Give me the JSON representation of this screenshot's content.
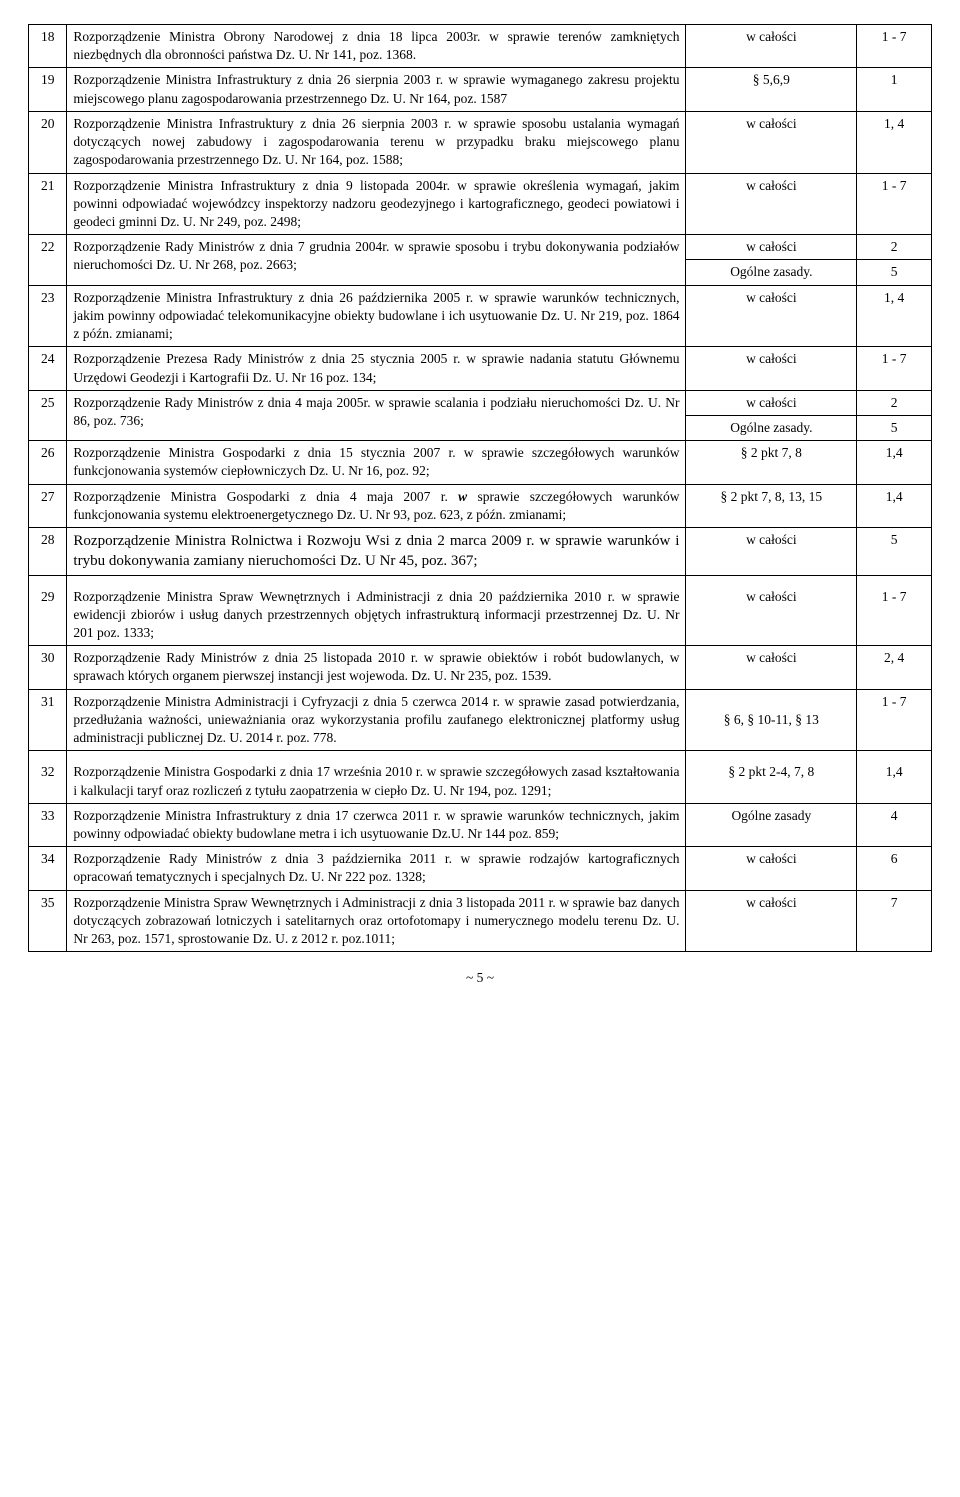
{
  "rows": [
    {
      "n": "18",
      "desc": "Rozporządzenie Ministra Obrony Narodowej z dnia 18 lipca 2003r. w sprawie terenów zamkniętych niezbędnych dla obronności państwa Dz. U. Nr 141, poz. 1368.",
      "ref": "w całości",
      "idx": "1 - 7"
    },
    {
      "n": "19",
      "desc": "Rozporządzenie Ministra Infrastruktury z dnia 26 sierpnia 2003 r. w sprawie wymaganego zakresu projektu miejscowego planu zagospodarowania przestrzennego Dz. U. Nr 164, poz. 1587",
      "ref": "§ 5,6,9",
      "idx": "1"
    },
    {
      "n": "20",
      "desc": "Rozporządzenie Ministra Infrastruktury z dnia 26 sierpnia 2003 r. w sprawie sposobu ustalania wymagań  dotyczących nowej zabudowy i zagospodarowania terenu  w przypadku braku miejscowego planu zagospodarowania przestrzennego Dz. U. Nr 164, poz. 1588;",
      "ref": "w całości",
      "idx": "1, 4"
    },
    {
      "n": "21",
      "desc": "Rozporządzenie Ministra Infrastruktury z dnia 9 listopada 2004r. w sprawie określenia wymagań, jakim powinni odpowiadać wojewódzcy inspektorzy nadzoru geodezyjnego i kartograficznego, geodeci  powiatowi i geodeci gminni Dz. U. Nr 249, poz. 2498;",
      "ref": "w całości",
      "idx": "1 - 7"
    },
    {
      "n": "22",
      "rowspan": 2,
      "desc": "Rozporządzenie Rady Ministrów z dnia 7 grudnia 2004r. w sprawie sposobu i trybu dokonywania podziałów nieruchomości Dz. U. Nr 268, poz. 2663;",
      "ref": "w całości",
      "idx": "2"
    },
    {
      "sub": true,
      "ref": "Ogólne zasady.",
      "idx": "5"
    },
    {
      "n": "23",
      "desc": "Rozporządzenie Ministra Infrastruktury z dnia 26 października 2005 r. w sprawie warunków technicznych, jakim powinny odpowiadać telekomunikacyjne obiekty budowlane i ich usytuowanie Dz. U. Nr 219, poz. 1864 z późn. zmianami;",
      "ref": "w całości",
      "idx": "1, 4"
    },
    {
      "n": "24",
      "desc": "Rozporządzenie Prezesa Rady Ministrów z dnia 25 stycznia 2005 r. w sprawie nadania statutu Głównemu Urzędowi Geodezji i Kartografii  Dz. U. Nr 16 poz. 134;",
      "ref": "w całości",
      "idx": "1 - 7"
    },
    {
      "n": "25",
      "rowspan": 2,
      "desc": "Rozporządzenie Rady Ministrów z dnia 4 maja 2005r. w sprawie scalania i podziału nieruchomości Dz. U. Nr 86, poz. 736;",
      "ref": "w całości",
      "idx": "2"
    },
    {
      "sub": true,
      "ref": "Ogólne zasady.",
      "idx": "5"
    },
    {
      "n": "26",
      "desc": "Rozporządzenie Ministra Gospodarki z dnia 15 stycznia 2007 r. w sprawie szczegółowych warunków funkcjonowania systemów ciepłowniczych Dz. U. Nr 16, poz. 92;",
      "ref": "§ 2 pkt 7, 8",
      "idx": "1,4"
    },
    {
      "n": "27",
      "desc": "Rozporządzenie Ministra Gospodarki z dnia 4 maja 2007 r. <i><b>w</b></i> sprawie szczegółowych warunków funkcjonowania systemu elektroenergetycznego Dz. U. Nr 93, poz. 623, z późn. zmianami;",
      "ref": "§ 2 pkt 7, 8, 13, 15",
      "idx": "1,4"
    },
    {
      "n": "28",
      "desc": "Rozporządzenie Ministra Rolnictwa i Rozwoju Wsi z dnia 2 marca 2009 r. w sprawie warunków i trybu dokonywania zamiany nieruchomości Dz. U Nr 45, poz. 367;",
      "ref": "w całości",
      "idx": "5",
      "big": true
    },
    {
      "n": "29",
      "desc": "Rozporządzenie Ministra Spraw Wewnętrznych i Administracji z dnia 20 października 2010 r. w sprawie ewidencji zbiorów i usług danych przestrzennych objętych infrastrukturą informacji przestrzennej Dz. U. Nr 201 poz. 1333;",
      "ref": "w całości",
      "idx": "1 - 7",
      "gap": true
    },
    {
      "n": "30",
      "desc": "Rozporządzenie Rady Ministrów z dnia 25 listopada 2010 r. w sprawie obiektów i robót budowlanych, w sprawach  których organem pierwszej instancji jest wojewoda. Dz. U. Nr 235, poz. 1539.",
      "ref": "w całości",
      "idx": "2, 4"
    },
    {
      "n": "31",
      "desc": "Rozporządzenie Ministra Administracji i Cyfryzacji z dnia 5 czerwca 2014 r. w sprawie zasad  potwierdzania, przedłużania ważności, unieważniania oraz wykorzystania profilu zaufanego elektronicznej platformy usług administracji publicznej Dz. U. 2014 r. poz. 778.",
      "ref": "§ 6, § 10-11, § 13",
      "idx": "1 - 7",
      "refMid": true
    },
    {
      "n": "32",
      "desc": "Rozporządzenie Ministra Gospodarki z dnia 17 września 2010 r. w sprawie szczegółowych zasad kształtowania i kalkulacji taryf oraz rozliczeń z tytułu zaopatrzenia w ciepło Dz. U. Nr 194, poz. 1291;",
      "ref": "§ 2 pkt 2-4, 7, 8",
      "idx": "1,4",
      "gap": true
    },
    {
      "n": "33",
      "desc": "Rozporządzenie Ministra Infrastruktury z dnia 17 czerwca 2011 r. w sprawie warunków technicznych, jakim powinny odpowiadać obiekty budowlane metra i ich usytuowanie Dz.U. Nr 144 poz. 859;",
      "ref": "Ogólne zasady",
      "idx": "4"
    },
    {
      "n": "34",
      "desc": "Rozporządzenie Rady Ministrów z dnia 3 października 2011 r. w sprawie rodzajów kartograficznych opracowań tematycznych i specjalnych Dz. U. Nr 222 poz. 1328;",
      "ref": "w całości",
      "idx": "6"
    },
    {
      "n": "35",
      "desc": "Rozporządzenie Ministra Spraw Wewnętrznych i Administracji z dnia 3 listopada 2011 r. w sprawie baz danych dotyczących zobrazowań lotniczych i satelitarnych oraz ortofotomapy i numerycznego modelu terenu Dz. U. Nr 263, poz. 1571, sprostowanie Dz. U. z 2012 r. poz.1011;",
      "ref": "w całości",
      "idx": "7"
    }
  ],
  "footer": "~ 5 ~"
}
